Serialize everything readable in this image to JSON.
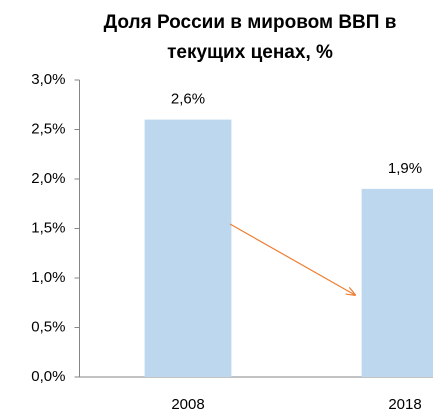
{
  "chart_data": {
    "type": "bar",
    "title": "Доля России в мировом ВВП в текущих ценах, %",
    "categories": [
      "2008",
      "2018"
    ],
    "values": [
      2.6,
      1.9
    ],
    "value_labels": [
      "2,6%",
      "1,9%"
    ],
    "color": "#bdd7ee",
    "ylim": [
      0,
      3
    ],
    "yticks": [
      {
        "value": 0,
        "label": "0,0%"
      },
      {
        "value": 0.5,
        "label": "0,5%"
      },
      {
        "value": 1,
        "label": "1,0%"
      },
      {
        "value": 1.5,
        "label": "1,5%"
      },
      {
        "value": 2,
        "label": "2,0%"
      },
      {
        "value": 2.5,
        "label": "2,5%"
      },
      {
        "value": 3,
        "label": "3,0%"
      }
    ],
    "grid": false
  }
}
